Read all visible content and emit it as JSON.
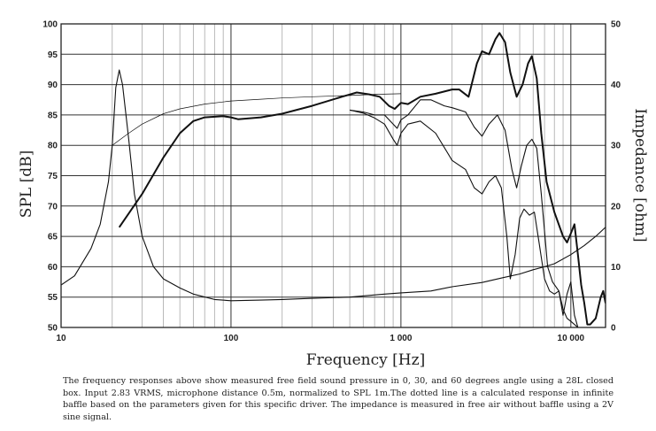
{
  "chart_data": {
    "type": "line",
    "xlabel": "Frequency [Hz]",
    "ylabel": "SPL [dB]",
    "y2label": "Impedance [ohm]",
    "x_scale": "log",
    "xlim": [
      10,
      16000
    ],
    "ylim": [
      50,
      100
    ],
    "y2lim": [
      0,
      50
    ],
    "x_ticks": [
      {
        "value": 10,
        "label": "10"
      },
      {
        "value": 100,
        "label": "100"
      },
      {
        "value": 1000,
        "label": "1 000"
      },
      {
        "value": 10000,
        "label": "10 000"
      }
    ],
    "y_ticks": [
      50,
      55,
      60,
      65,
      70,
      75,
      80,
      85,
      90,
      95,
      100
    ],
    "y2_ticks": [
      0,
      10,
      20,
      30,
      40,
      50
    ],
    "grid": true,
    "series": [
      {
        "key": "spl_0deg",
        "style": "thick",
        "points": [
          [
            22,
            66.5
          ],
          [
            30,
            72
          ],
          [
            40,
            78
          ],
          [
            50,
            82
          ],
          [
            60,
            84
          ],
          [
            70,
            84.6
          ],
          [
            90,
            84.8
          ],
          [
            100,
            84.6
          ],
          [
            110,
            84.3
          ],
          [
            150,
            84.6
          ],
          [
            200,
            85.2
          ],
          [
            300,
            86.5
          ],
          [
            450,
            88
          ],
          [
            550,
            88.7
          ],
          [
            650,
            88.4
          ],
          [
            750,
            88
          ],
          [
            850,
            86.5
          ],
          [
            920,
            86
          ],
          [
            1000,
            87
          ],
          [
            1100,
            86.8
          ],
          [
            1300,
            88
          ],
          [
            1600,
            88.5
          ],
          [
            2000,
            89.2
          ],
          [
            2200,
            89.2
          ],
          [
            2500,
            88
          ],
          [
            2800,
            93.5
          ],
          [
            3000,
            95.5
          ],
          [
            3300,
            95
          ],
          [
            3600,
            97.5
          ],
          [
            3800,
            98.5
          ],
          [
            4100,
            97
          ],
          [
            4400,
            92
          ],
          [
            4800,
            88
          ],
          [
            5200,
            90
          ],
          [
            5600,
            93.5
          ],
          [
            5900,
            94.7
          ],
          [
            6300,
            91
          ],
          [
            6700,
            82
          ],
          [
            7200,
            74
          ],
          [
            8000,
            69
          ],
          [
            9000,
            65
          ],
          [
            9500,
            64
          ],
          [
            10000,
            65.5
          ],
          [
            10500,
            67
          ],
          [
            11000,
            62
          ],
          [
            11500,
            57
          ],
          [
            12000,
            54
          ],
          [
            12500,
            50.5
          ],
          [
            13000,
            50.5
          ],
          [
            14000,
            51.5
          ],
          [
            15000,
            55
          ],
          [
            15500,
            56
          ],
          [
            16000,
            54
          ]
        ]
      },
      {
        "key": "spl_30deg",
        "style": "thin",
        "points": [
          [
            500,
            85.8
          ],
          [
            600,
            85.5
          ],
          [
            700,
            85
          ],
          [
            800,
            85
          ],
          [
            900,
            83.5
          ],
          [
            950,
            82.8
          ],
          [
            1000,
            84.2
          ],
          [
            1100,
            85
          ],
          [
            1300,
            87.5
          ],
          [
            1500,
            87.5
          ],
          [
            1800,
            86.5
          ],
          [
            2000,
            86.2
          ],
          [
            2400,
            85.5
          ],
          [
            2700,
            83
          ],
          [
            3000,
            81.5
          ],
          [
            3300,
            83.5
          ],
          [
            3700,
            85
          ],
          [
            4100,
            82.5
          ],
          [
            4500,
            76
          ],
          [
            4800,
            73
          ],
          [
            5100,
            76.5
          ],
          [
            5500,
            80
          ],
          [
            5900,
            81
          ],
          [
            6300,
            79.5
          ],
          [
            6700,
            72
          ],
          [
            7300,
            60
          ],
          [
            7800,
            57.5
          ],
          [
            8500,
            56
          ],
          [
            9000,
            52
          ],
          [
            9500,
            55.5
          ],
          [
            10000,
            57.5
          ],
          [
            10500,
            52
          ],
          [
            11000,
            50
          ],
          [
            12000,
            50
          ]
        ]
      },
      {
        "key": "spl_60deg",
        "style": "thin",
        "points": [
          [
            500,
            85.8
          ],
          [
            600,
            85.3
          ],
          [
            700,
            84.5
          ],
          [
            800,
            83.5
          ],
          [
            900,
            81
          ],
          [
            950,
            80
          ],
          [
            1000,
            82
          ],
          [
            1100,
            83.5
          ],
          [
            1300,
            84
          ],
          [
            1600,
            82
          ],
          [
            2000,
            77.5
          ],
          [
            2400,
            76
          ],
          [
            2700,
            73
          ],
          [
            3000,
            72
          ],
          [
            3300,
            74
          ],
          [
            3600,
            75
          ],
          [
            3900,
            73
          ],
          [
            4200,
            65
          ],
          [
            4400,
            58
          ],
          [
            4700,
            62
          ],
          [
            5000,
            68
          ],
          [
            5300,
            69.5
          ],
          [
            5700,
            68.5
          ],
          [
            6100,
            69
          ],
          [
            6500,
            64
          ],
          [
            7000,
            58
          ],
          [
            7500,
            56
          ],
          [
            8000,
            55.5
          ],
          [
            8500,
            56
          ],
          [
            9000,
            53
          ],
          [
            9500,
            51.5
          ],
          [
            10000,
            51
          ],
          [
            11000,
            50
          ]
        ]
      },
      {
        "key": "spl_infinite_baffle_calculated",
        "style": "hairline",
        "points": [
          [
            20,
            80
          ],
          [
            25,
            82
          ],
          [
            30,
            83.5
          ],
          [
            40,
            85.2
          ],
          [
            50,
            86
          ],
          [
            70,
            86.8
          ],
          [
            100,
            87.3
          ],
          [
            150,
            87.6
          ],
          [
            200,
            87.8
          ],
          [
            300,
            88
          ],
          [
            500,
            88.2
          ],
          [
            700,
            88.4
          ],
          [
            1000,
            88.5
          ]
        ]
      },
      {
        "key": "impedance",
        "axis": "right",
        "style": "thin",
        "points": [
          [
            10,
            7
          ],
          [
            12,
            8.5
          ],
          [
            15,
            13
          ],
          [
            17,
            17
          ],
          [
            19,
            24
          ],
          [
            20,
            30
          ],
          [
            21,
            39.5
          ],
          [
            22,
            42.4
          ],
          [
            23,
            40
          ],
          [
            25,
            31
          ],
          [
            27,
            22
          ],
          [
            30,
            15
          ],
          [
            35,
            10
          ],
          [
            40,
            8
          ],
          [
            50,
            6.5
          ],
          [
            60,
            5.5
          ],
          [
            80,
            4.6
          ],
          [
            100,
            4.4
          ],
          [
            150,
            4.5
          ],
          [
            200,
            4.6
          ],
          [
            300,
            4.8
          ],
          [
            500,
            5
          ],
          [
            800,
            5.5
          ],
          [
            1000,
            5.7
          ],
          [
            1500,
            6
          ],
          [
            2000,
            6.7
          ],
          [
            3000,
            7.4
          ],
          [
            4000,
            8.2
          ],
          [
            5000,
            8.8
          ],
          [
            6000,
            9.5
          ],
          [
            7000,
            10
          ],
          [
            8000,
            10.5
          ],
          [
            10000,
            12
          ],
          [
            12000,
            13.5
          ],
          [
            14000,
            15
          ],
          [
            16000,
            16.5
          ]
        ]
      }
    ]
  },
  "caption": "The frequency responses above show measured free field sound pressure in 0, 30, and 60 degrees angle using a 28L closed box. Input 2.83 VRMS, microphone distance 0.5m, normalized to SPL 1m.The dotted line is a calculated response in infinite baffle based on the parameters given for this specific driver. The impedance is measured in free air without baffle using a 2V sine signal."
}
